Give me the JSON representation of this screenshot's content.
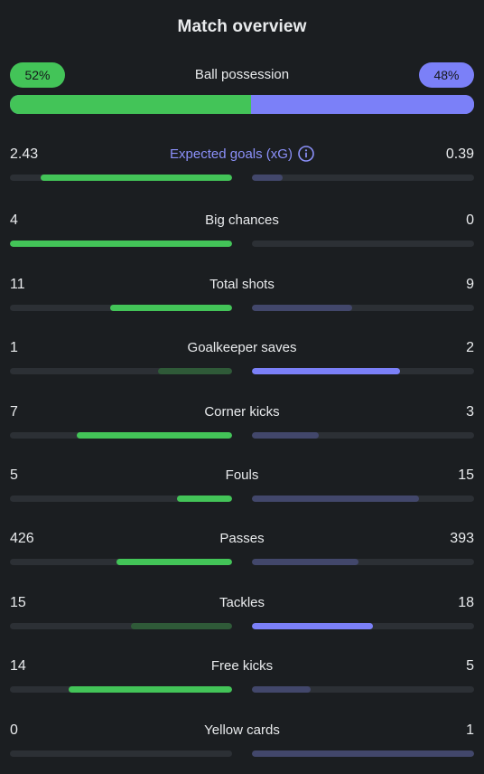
{
  "title": "Match overview",
  "colors": {
    "home_strong": "#43c458",
    "home_weak": "#2f5a38",
    "away_strong": "#7b80f8",
    "away_weak": "#42476b",
    "track": "#2c3035",
    "accent_label": "#8b90f9"
  },
  "possession": {
    "label": "Ball possession",
    "home_text": "52%",
    "away_text": "48%",
    "home_value": 52,
    "away_value": 48
  },
  "stats": [
    {
      "label": "Expected goals (xG)",
      "home": "2.43",
      "away": "0.39",
      "home_num": 2.43,
      "away_num": 0.39,
      "has_info": true,
      "home_strong": true,
      "away_strong": false,
      "accent": true,
      "info_icon": "info-circle-icon"
    },
    {
      "label": "Big chances",
      "home": "4",
      "away": "0",
      "home_num": 4,
      "away_num": 0,
      "home_strong": true,
      "away_strong": false
    },
    {
      "label": "Total shots",
      "home": "11",
      "away": "9",
      "home_num": 11,
      "away_num": 9,
      "home_strong": true,
      "away_strong": false
    },
    {
      "label": "Goalkeeper saves",
      "home": "1",
      "away": "2",
      "home_num": 1,
      "away_num": 2,
      "home_strong": false,
      "away_strong": true
    },
    {
      "label": "Corner kicks",
      "home": "7",
      "away": "3",
      "home_num": 7,
      "away_num": 3,
      "home_strong": true,
      "away_strong": false
    },
    {
      "label": "Fouls",
      "home": "5",
      "away": "15",
      "home_num": 5,
      "away_num": 15,
      "home_strong": true,
      "away_strong": false
    },
    {
      "label": "Passes",
      "home": "426",
      "away": "393",
      "home_num": 426,
      "away_num": 393,
      "home_strong": true,
      "away_strong": false
    },
    {
      "label": "Tackles",
      "home": "15",
      "away": "18",
      "home_num": 15,
      "away_num": 18,
      "home_strong": false,
      "away_strong": true
    },
    {
      "label": "Free kicks",
      "home": "14",
      "away": "5",
      "home_num": 14,
      "away_num": 5,
      "home_strong": true,
      "away_strong": false
    },
    {
      "label": "Yellow cards",
      "home": "0",
      "away": "1",
      "home_num": 0,
      "away_num": 1,
      "home_strong": false,
      "away_strong": false
    }
  ]
}
